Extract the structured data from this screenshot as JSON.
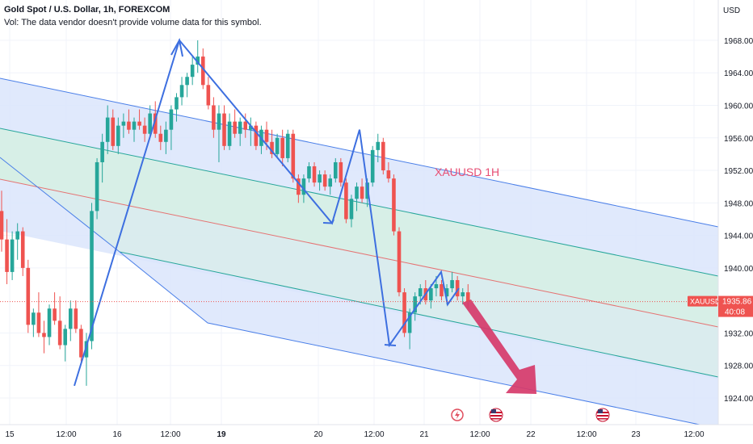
{
  "header": {
    "title": "Gold Spot / U.S. Dollar, 1h, FOREXCOM",
    "vol_note": "Vol: The data vendor doesn't provide volume data for this symbol."
  },
  "price_axis": {
    "currency": "USD",
    "ticks": [
      "1968.00",
      "1964.00",
      "1960.00",
      "1956.00",
      "1952.00",
      "1948.00",
      "1944.00",
      "1940.00",
      "1932.00",
      "1928.00",
      "1924.00"
    ]
  },
  "time_axis": {
    "labels": [
      "15",
      "12:00",
      "16",
      "12:00",
      "19",
      "20",
      "12:00",
      "21",
      "12:00",
      "22",
      "12:00",
      "23",
      "12:00"
    ]
  },
  "price_badge": {
    "symbol": "XAUUSD",
    "price": "1935.86",
    "countdown": "40:08"
  },
  "annotation": "XAUUSD 1H",
  "colors": {
    "bull": "#26a69a",
    "bear": "#ef5350",
    "channel_blue": "#4a7fe8",
    "channel_fill_blue": "#dbe5fb",
    "channel_fill_green": "#d6efe4",
    "median_red": "#e57373",
    "zigzag": "#3d6fe0",
    "arrow": "#d63a6a"
  },
  "chart_data": {
    "type": "candlestick",
    "symbol": "XAUUSD",
    "timeframe": "1h",
    "ylim": [
      1922,
      1972
    ],
    "last_price": 1935.86,
    "series": [
      {
        "name": "XAUUSD",
        "ohlc": [
          [
            1947.0,
            1949.5,
            1942.0,
            1943.5
          ],
          [
            1943.5,
            1946.0,
            1938.0,
            1939.5
          ],
          [
            1939.5,
            1944.5,
            1938.5,
            1943.5
          ],
          [
            1943.5,
            1945.5,
            1941.0,
            1944.5
          ],
          [
            1944.5,
            1945.0,
            1939.0,
            1940.0
          ],
          [
            1940.0,
            1941.0,
            1932.0,
            1933.0
          ],
          [
            1933.0,
            1935.0,
            1931.5,
            1934.5
          ],
          [
            1934.5,
            1937.0,
            1931.5,
            1932.0
          ],
          [
            1932.0,
            1933.5,
            1929.5,
            1931.5
          ],
          [
            1931.5,
            1935.5,
            1930.5,
            1935.0
          ],
          [
            1935.0,
            1937.0,
            1933.0,
            1933.5
          ],
          [
            1933.5,
            1936.5,
            1930.0,
            1930.5
          ],
          [
            1930.5,
            1933.0,
            1928.5,
            1932.5
          ],
          [
            1932.5,
            1936.0,
            1931.0,
            1935.0
          ],
          [
            1935.0,
            1936.0,
            1932.0,
            1932.5
          ],
          [
            1932.5,
            1933.0,
            1928.5,
            1929.0
          ],
          [
            1929.0,
            1932.0,
            1925.5,
            1931.0
          ],
          [
            1931.0,
            1948.0,
            1930.0,
            1947.0
          ],
          [
            1947.0,
            1953.5,
            1946.0,
            1953.0
          ],
          [
            1953.0,
            1956.5,
            1950.5,
            1955.5
          ],
          [
            1955.5,
            1960.0,
            1954.0,
            1958.5
          ],
          [
            1958.5,
            1959.5,
            1954.5,
            1955.0
          ],
          [
            1955.0,
            1958.5,
            1954.0,
            1957.5
          ],
          [
            1957.5,
            1959.0,
            1956.0,
            1958.0
          ],
          [
            1958.0,
            1959.5,
            1956.5,
            1957.0
          ],
          [
            1957.0,
            1958.5,
            1955.5,
            1958.0
          ],
          [
            1958.0,
            1959.5,
            1957.0,
            1957.5
          ],
          [
            1957.5,
            1958.5,
            1955.5,
            1956.5
          ],
          [
            1956.5,
            1960.0,
            1956.0,
            1959.0
          ],
          [
            1959.0,
            1960.5,
            1956.0,
            1956.5
          ],
          [
            1956.5,
            1957.5,
            1954.5,
            1955.5
          ],
          [
            1955.5,
            1958.0,
            1954.0,
            1957.0
          ],
          [
            1957.0,
            1960.0,
            1954.5,
            1959.5
          ],
          [
            1959.5,
            1961.5,
            1958.0,
            1961.0
          ],
          [
            1961.0,
            1963.5,
            1960.0,
            1962.5
          ],
          [
            1962.5,
            1964.0,
            1961.0,
            1963.5
          ],
          [
            1963.5,
            1966.0,
            1962.5,
            1965.0
          ],
          [
            1965.0,
            1968.0,
            1964.0,
            1966.0
          ],
          [
            1966.0,
            1967.0,
            1962.0,
            1962.5
          ],
          [
            1962.5,
            1963.5,
            1959.5,
            1960.0
          ],
          [
            1960.0,
            1961.0,
            1956.0,
            1957.0
          ],
          [
            1957.0,
            1960.0,
            1953.0,
            1959.0
          ],
          [
            1959.0,
            1960.0,
            1954.5,
            1955.0
          ],
          [
            1955.0,
            1959.0,
            1954.5,
            1958.0
          ],
          [
            1958.0,
            1959.5,
            1956.0,
            1956.5
          ],
          [
            1956.5,
            1958.5,
            1955.0,
            1958.0
          ],
          [
            1958.0,
            1959.0,
            1956.0,
            1957.0
          ],
          [
            1957.0,
            1958.5,
            1955.0,
            1957.5
          ],
          [
            1957.5,
            1958.0,
            1954.5,
            1955.0
          ],
          [
            1955.0,
            1957.5,
            1954.0,
            1957.0
          ],
          [
            1957.0,
            1958.0,
            1954.5,
            1955.5
          ],
          [
            1955.5,
            1957.0,
            1953.5,
            1954.0
          ],
          [
            1954.0,
            1956.5,
            1953.5,
            1956.0
          ],
          [
            1956.0,
            1957.0,
            1952.5,
            1953.5
          ],
          [
            1953.5,
            1957.0,
            1953.0,
            1956.5
          ],
          [
            1956.5,
            1957.0,
            1950.5,
            1951.0
          ],
          [
            1951.0,
            1951.5,
            1948.0,
            1949.0
          ],
          [
            1949.0,
            1951.5,
            1948.0,
            1951.0
          ],
          [
            1951.0,
            1953.0,
            1950.5,
            1952.5
          ],
          [
            1952.5,
            1953.0,
            1950.0,
            1950.5
          ],
          [
            1950.5,
            1952.0,
            1949.5,
            1951.5
          ],
          [
            1951.5,
            1952.0,
            1949.5,
            1950.0
          ],
          [
            1950.0,
            1951.5,
            1949.0,
            1951.0
          ],
          [
            1951.0,
            1953.5,
            1950.5,
            1953.0
          ],
          [
            1953.0,
            1953.5,
            1950.0,
            1950.5
          ],
          [
            1950.5,
            1951.0,
            1945.5,
            1946.0
          ],
          [
            1946.0,
            1949.0,
            1945.0,
            1948.5
          ],
          [
            1948.5,
            1950.5,
            1947.0,
            1950.0
          ],
          [
            1950.0,
            1951.0,
            1948.0,
            1948.5
          ],
          [
            1948.5,
            1951.0,
            1947.5,
            1950.5
          ],
          [
            1950.5,
            1955.0,
            1950.0,
            1954.5
          ],
          [
            1954.5,
            1956.5,
            1953.0,
            1955.5
          ],
          [
            1955.5,
            1956.0,
            1951.5,
            1952.0
          ],
          [
            1952.0,
            1953.0,
            1950.5,
            1951.0
          ],
          [
            1951.0,
            1951.5,
            1944.0,
            1944.5
          ],
          [
            1944.5,
            1945.0,
            1936.5,
            1937.0
          ],
          [
            1937.0,
            1937.5,
            1931.5,
            1932.0
          ],
          [
            1932.0,
            1935.0,
            1930.0,
            1934.5
          ],
          [
            1934.5,
            1937.0,
            1933.5,
            1936.5
          ],
          [
            1936.5,
            1938.0,
            1935.5,
            1937.5
          ],
          [
            1937.5,
            1938.5,
            1935.5,
            1936.0
          ],
          [
            1936.0,
            1938.0,
            1935.0,
            1937.5
          ],
          [
            1937.5,
            1939.0,
            1936.5,
            1938.0
          ],
          [
            1938.0,
            1938.5,
            1936.0,
            1936.5
          ],
          [
            1936.5,
            1938.0,
            1935.5,
            1937.5
          ],
          [
            1937.5,
            1939.5,
            1937.0,
            1938.5
          ],
          [
            1938.5,
            1939.0,
            1936.0,
            1936.5
          ],
          [
            1936.5,
            1937.5,
            1935.5,
            1937.0
          ],
          [
            1937.0,
            1938.0,
            1935.0,
            1935.86
          ]
        ]
      }
    ],
    "zigzag_prices": [
      1925.5,
      1968.0,
      1945.5,
      1957.0,
      1930.5,
      1939.5,
      1935.5,
      1937.5
    ],
    "projection_target": 1924.5,
    "grid": true
  }
}
